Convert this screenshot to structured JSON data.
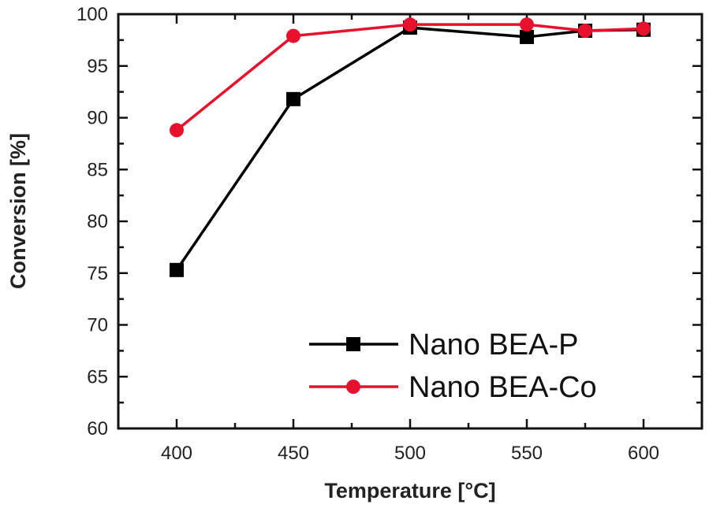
{
  "chart_data": {
    "type": "line",
    "title": "",
    "xlabel": "Temperature [°C]",
    "ylabel": "Conversion [%]",
    "xlim": [
      375,
      625
    ],
    "ylim": [
      60,
      100
    ],
    "xticks": [
      400,
      450,
      500,
      550,
      600
    ],
    "yticks": [
      60,
      65,
      70,
      75,
      80,
      85,
      90,
      95,
      100
    ],
    "grid": false,
    "legend_position": "bottom-right",
    "series": [
      {
        "name": "Nano BEA-P",
        "color": "#000000",
        "marker": "square",
        "x": [
          400,
          450,
          500,
          550,
          575,
          600
        ],
        "y": [
          75.3,
          91.8,
          98.7,
          97.8,
          98.4,
          98.5
        ]
      },
      {
        "name": "Nano BEA-Co",
        "color": "#e8112d",
        "marker": "circle",
        "x": [
          400,
          450,
          500,
          550,
          575,
          600
        ],
        "y": [
          88.8,
          97.9,
          99.0,
          99.0,
          98.4,
          98.6
        ]
      }
    ]
  }
}
